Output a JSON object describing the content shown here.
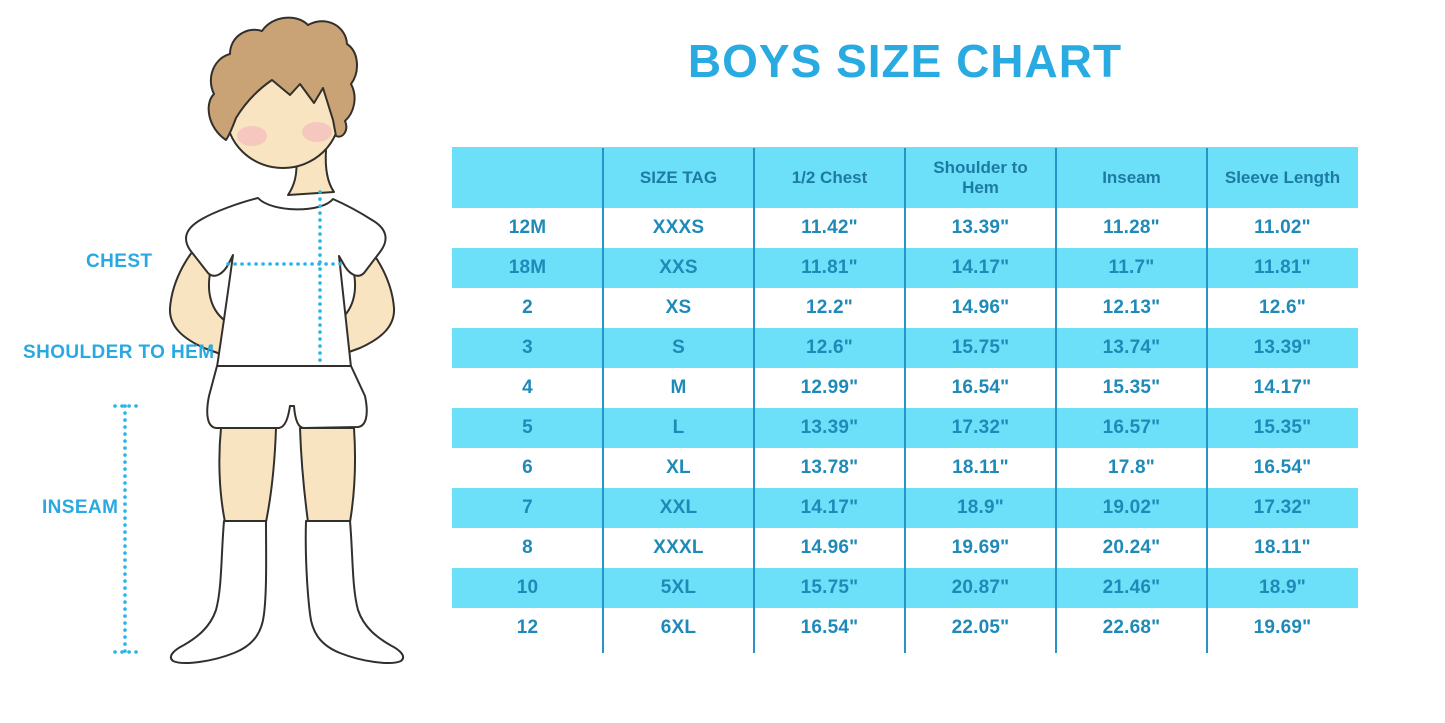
{
  "chart_data": {
    "type": "table",
    "title": "BOYS SIZE CHART",
    "columns": [
      "",
      "SIZE TAG",
      "1/2 Chest",
      "Shoulder to Hem",
      "Inseam",
      "Sleeve Length"
    ],
    "rows": [
      [
        "12M",
        "XXXS",
        "11.42\"",
        "13.39\"",
        "11.28\"",
        "11.02\""
      ],
      [
        "18M",
        "XXS",
        "11.81\"",
        "14.17\"",
        "11.7\"",
        "11.81\""
      ],
      [
        "2",
        "XS",
        "12.2\"",
        "14.96\"",
        "12.13\"",
        "12.6\""
      ],
      [
        "3",
        "S",
        "12.6\"",
        "15.75\"",
        "13.74\"",
        "13.39\""
      ],
      [
        "4",
        "M",
        "12.99\"",
        "16.54\"",
        "15.35\"",
        "14.17\""
      ],
      [
        "5",
        "L",
        "13.39\"",
        "17.32\"",
        "16.57\"",
        "15.35\""
      ],
      [
        "6",
        "XL",
        "13.78\"",
        "18.11\"",
        "17.8\"",
        "16.54\""
      ],
      [
        "7",
        "XXL",
        "14.17\"",
        "18.9\"",
        "19.02\"",
        "17.32\""
      ],
      [
        "8",
        "XXXL",
        "14.96\"",
        "19.69\"",
        "20.24\"",
        "18.11\""
      ],
      [
        "10",
        "5XL",
        "15.75\"",
        "20.87\"",
        "21.46\"",
        "18.9\""
      ],
      [
        "12",
        "6XL",
        "16.54\"",
        "22.05\"",
        "22.68\"",
        "19.69\""
      ]
    ],
    "layout": {
      "banded_rows": true,
      "first_data_row": "white",
      "grid": "vertical-dividers-only"
    }
  },
  "illustration": {
    "labels": {
      "chest": "CHEST",
      "shoulder_to_hem": "SHOULDER TO HEM",
      "inseam": "INSEAM"
    }
  },
  "colors": {
    "title": "#29abe2",
    "measure_label": "#29a9e1",
    "table_band": "#6ce0f8",
    "table_divider": "#2794c7",
    "table_header_text": "#1d7aa4",
    "table_cell_text": "#1f8ab8",
    "dotted_line": "#29b5e8",
    "hair": "#c9a376",
    "skin": "#f9e4c2",
    "cheek": "#f2afbe",
    "outline": "#33302c",
    "background": "#ffffff"
  }
}
